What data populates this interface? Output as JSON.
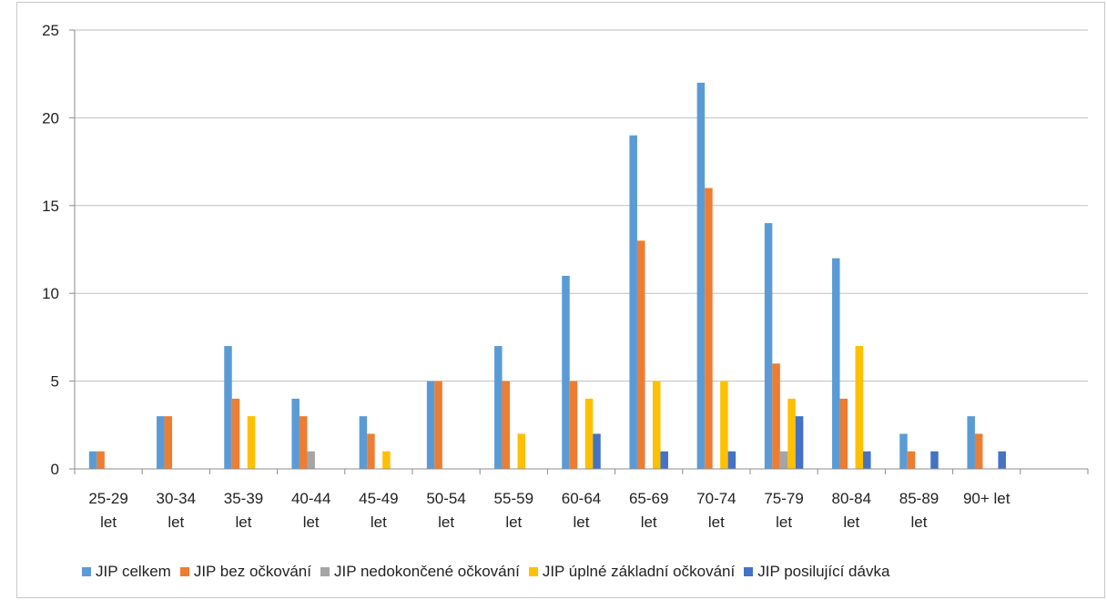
{
  "chart_data": {
    "type": "bar",
    "categories": [
      "25-29 let",
      "30-34 let",
      "35-39 let",
      "40-44 let",
      "45-49 let",
      "50-54 let",
      "55-59 let",
      "60-64 let",
      "65-69 let",
      "70-74 let",
      "75-79 let",
      "80-84 let",
      "85-89 let",
      "90+ let",
      ""
    ],
    "ylim": [
      0,
      25
    ],
    "yticks": [
      0,
      5,
      10,
      15,
      20,
      25
    ],
    "grid": true,
    "legend_position": "bottom",
    "series": [
      {
        "name": "JIP celkem",
        "color": "#5b9bd5",
        "values": [
          1,
          3,
          7,
          4,
          3,
          5,
          7,
          11,
          19,
          22,
          14,
          12,
          2,
          3,
          0
        ]
      },
      {
        "name": "JIP bez očkování",
        "color": "#ed7d31",
        "values": [
          1,
          3,
          4,
          3,
          2,
          5,
          5,
          5,
          13,
          16,
          6,
          4,
          1,
          2,
          0
        ]
      },
      {
        "name": "JIP nedokončené očkování",
        "color": "#a5a5a5",
        "values": [
          0,
          0,
          0,
          1,
          0,
          0,
          0,
          0,
          0,
          0,
          1,
          0,
          0,
          0,
          0
        ]
      },
      {
        "name": "JIP úplné základní očkování",
        "color": "#ffc000",
        "values": [
          0,
          0,
          3,
          0,
          1,
          0,
          2,
          4,
          5,
          5,
          4,
          7,
          0,
          0,
          0
        ]
      },
      {
        "name": "JIP posilující dávka",
        "color": "#4472c4",
        "values": [
          0,
          0,
          0,
          0,
          0,
          0,
          0,
          2,
          1,
          1,
          3,
          1,
          1,
          1,
          0
        ]
      }
    ]
  }
}
